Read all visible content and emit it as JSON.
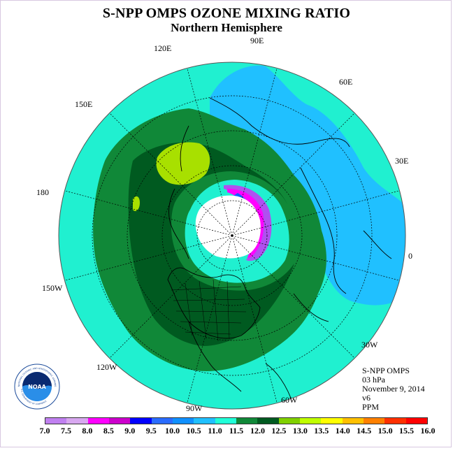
{
  "header": {
    "title": "S-NPP OMPS OZONE MIXING RATIO",
    "subtitle": "Northern Hemisphere"
  },
  "longitude_labels": [
    {
      "name": "lon-90e",
      "text": "90E"
    },
    {
      "name": "lon-60e",
      "text": "60E"
    },
    {
      "name": "lon-30e",
      "text": "30E"
    },
    {
      "name": "lon-0",
      "text": "0"
    },
    {
      "name": "lon-30w",
      "text": "30W"
    },
    {
      "name": "lon-60w",
      "text": "60W"
    },
    {
      "name": "lon-90w",
      "text": "90W"
    },
    {
      "name": "lon-120w",
      "text": "120W"
    },
    {
      "name": "lon-150w",
      "text": "150W"
    },
    {
      "name": "lon-180",
      "text": "180"
    },
    {
      "name": "lon-150e",
      "text": "150E"
    },
    {
      "name": "lon-120e",
      "text": "120E"
    }
  ],
  "info": {
    "instrument": "S-NPP OMPS",
    "level": "03 hPa",
    "date": "November 9, 2014",
    "version": "v6",
    "unit": "PPM"
  },
  "logo": {
    "text": "NOAA",
    "ring_text": "NATIONAL OCEANIC AND ATMOSPHERIC ADMINISTRATION",
    "ring_text_bottom": "U.S. DEPARTMENT OF COMMERCE"
  },
  "colorbar": {
    "labels": [
      "7.0",
      "7.5",
      "8.0",
      "8.5",
      "9.0",
      "9.5",
      "10.0",
      "10.5",
      "11.0",
      "11.5",
      "12.0",
      "12.5",
      "13.0",
      "13.5",
      "14.0",
      "14.5",
      "15.0",
      "15.5",
      "16.0"
    ],
    "colors": [
      "#c080f0",
      "#d8a8f0",
      "#ff00ff",
      "#cc00cc",
      "#0000ff",
      "#2a6cff",
      "#1090ff",
      "#20c0ff",
      "#20ffd8",
      "#108838",
      "#005a20",
      "#80d000",
      "#c0ff00",
      "#ffff00",
      "#ffc000",
      "#ff8000",
      "#ff3000",
      "#ff0000",
      "#8b5a2b"
    ]
  },
  "map_colors": {
    "background": "#20f0d0",
    "blue_region": "#20c0ff",
    "green": "#108838",
    "dark_green": "#005a20",
    "yellow_green": "#a8e000",
    "pole": "#ffffff",
    "magenta": "#ff00ff",
    "purple": "#b050f0",
    "blue": "#1060ff"
  }
}
